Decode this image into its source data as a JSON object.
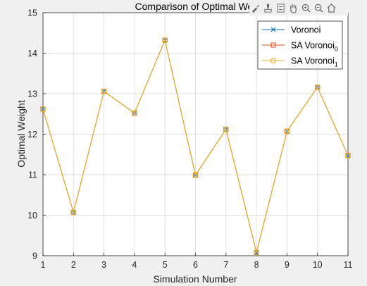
{
  "chart_data": {
    "type": "line",
    "title": "Comparison of Optimal Wei",
    "xlabel": "Simulation Number",
    "ylabel": "Optimal Weight",
    "xlim": [
      1,
      11
    ],
    "ylim": [
      9,
      15
    ],
    "xticks": [
      "1",
      "2",
      "3",
      "4",
      "5",
      "6",
      "7",
      "8",
      "9",
      "10",
      "11"
    ],
    "yticks": [
      "9",
      "10",
      "11",
      "12",
      "13",
      "14",
      "15"
    ],
    "grid": true,
    "legend_position": "top-right",
    "x": [
      1,
      2,
      3,
      4,
      5,
      6,
      7,
      8,
      9,
      10,
      11
    ],
    "series": [
      {
        "name": "Voronoi",
        "marker": "x",
        "color": "#0072bd",
        "values": [
          12.62,
          10.07,
          13.06,
          12.52,
          14.32,
          10.99,
          12.12,
          9.08,
          12.07,
          13.16,
          11.47
        ]
      },
      {
        "name": "SA Voronoi",
        "subscript": "0",
        "marker": "square",
        "color": "#d95319",
        "values": [
          12.62,
          10.07,
          13.06,
          12.52,
          14.32,
          10.99,
          12.12,
          9.08,
          12.07,
          13.16,
          11.47
        ]
      },
      {
        "name": "SA Voronoi",
        "subscript": "1",
        "marker": "circle",
        "color": "#edb120",
        "values": [
          12.62,
          10.07,
          13.06,
          12.52,
          14.32,
          10.99,
          12.12,
          9.08,
          12.07,
          13.16,
          11.47
        ]
      }
    ]
  },
  "toolbar": {
    "icons": [
      "brush-icon",
      "data-tips-icon",
      "legend-icon",
      "pan-icon",
      "zoom-in-icon",
      "zoom-out-icon",
      "home-icon"
    ]
  }
}
